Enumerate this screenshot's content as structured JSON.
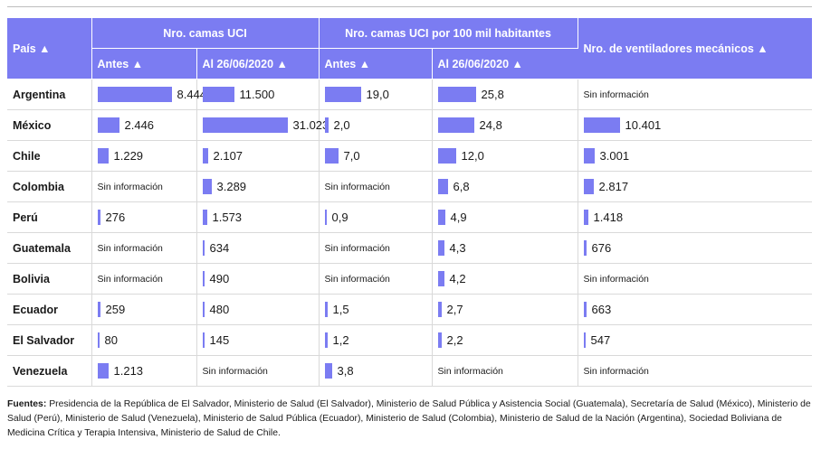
{
  "headers": {
    "country": "País ▲",
    "group1": "Nro. camas UCI",
    "group2": "Nro. camas UCI por 100 mil habitantes",
    "vent": "Nro. de ventiladores mecánicos ▲",
    "before": "Antes ▲",
    "after": "Al 26/06/2020 ▲"
  },
  "na_text": "Sin información",
  "colors": {
    "header_bg": "#7b7cf2",
    "bar": "#7b7cf2"
  },
  "chart_data": {
    "type": "table",
    "columns": [
      "País",
      "Nro. camas UCI - Antes",
      "Nro. camas UCI - Al 26/06/2020",
      "Nro. camas UCI por 100 mil habitantes - Antes",
      "Nro. camas UCI por 100 mil habitantes - Al 26/06/2020",
      "Nro. de ventiladores mecánicos"
    ],
    "rows": [
      {
        "country": "Argentina",
        "beds_before": "8.444",
        "beds_after": "11.500",
        "rate_before": "19,0",
        "rate_after": "25,8",
        "vent": null,
        "values": [
          8444,
          11500,
          19.0,
          25.8,
          null
        ]
      },
      {
        "country": "México",
        "beds_before": "2.446",
        "beds_after": "31.023",
        "rate_before": "2,0",
        "rate_after": "24,8",
        "vent": "10.401",
        "values": [
          2446,
          31023,
          2.0,
          24.8,
          10401
        ]
      },
      {
        "country": "Chile",
        "beds_before": "1.229",
        "beds_after": "2.107",
        "rate_before": "7,0",
        "rate_after": "12,0",
        "vent": "3.001",
        "values": [
          1229,
          2107,
          7.0,
          12.0,
          3001
        ]
      },
      {
        "country": "Colombia",
        "beds_before": null,
        "beds_after": "3.289",
        "rate_before": null,
        "rate_after": "6,8",
        "vent": "2.817",
        "values": [
          null,
          3289,
          null,
          6.8,
          2817
        ]
      },
      {
        "country": "Perú",
        "beds_before": "276",
        "beds_after": "1.573",
        "rate_before": "0,9",
        "rate_after": "4,9",
        "vent": "1.418",
        "values": [
          276,
          1573,
          0.9,
          4.9,
          1418
        ]
      },
      {
        "country": "Guatemala",
        "beds_before": null,
        "beds_after": "634",
        "rate_before": null,
        "rate_after": "4,3",
        "vent": "676",
        "values": [
          null,
          634,
          null,
          4.3,
          676
        ]
      },
      {
        "country": "Bolivia",
        "beds_before": null,
        "beds_after": "490",
        "rate_before": null,
        "rate_after": "4,2",
        "vent": null,
        "values": [
          null,
          490,
          null,
          4.2,
          null
        ]
      },
      {
        "country": "Ecuador",
        "beds_before": "259",
        "beds_after": "480",
        "rate_before": "1,5",
        "rate_after": "2,7",
        "vent": "663",
        "values": [
          259,
          480,
          1.5,
          2.7,
          663
        ]
      },
      {
        "country": "El Salvador",
        "beds_before": "80",
        "beds_after": "145",
        "rate_before": "1,2",
        "rate_after": "2,2",
        "vent": "547",
        "values": [
          80,
          145,
          1.2,
          2.2,
          547
        ]
      },
      {
        "country": "Venezuela",
        "beds_before": "1.213",
        "beds_after": null,
        "rate_before": "3,8",
        "rate_after": null,
        "vent": null,
        "values": [
          1213,
          null,
          3.8,
          null,
          null
        ]
      }
    ]
  },
  "sources": {
    "label": "Fuentes:",
    "text": "Presidencia de la República de El Salvador, Ministerio de Salud (El Salvador), Ministerio de Salud Pública y Asistencia Social (Guatemala), Secretaría de Salud (México), Ministerio de Salud (Perú), Ministerio de Salud (Venezuela), Ministerio de Salud Pública (Ecuador), Ministerio de Salud (Colombia), Ministerio de Salud de la Nación (Argentina), Sociedad Boliviana de Medicina Crítica y Terapia Intensiva, Ministerio de Salud de Chile."
  }
}
